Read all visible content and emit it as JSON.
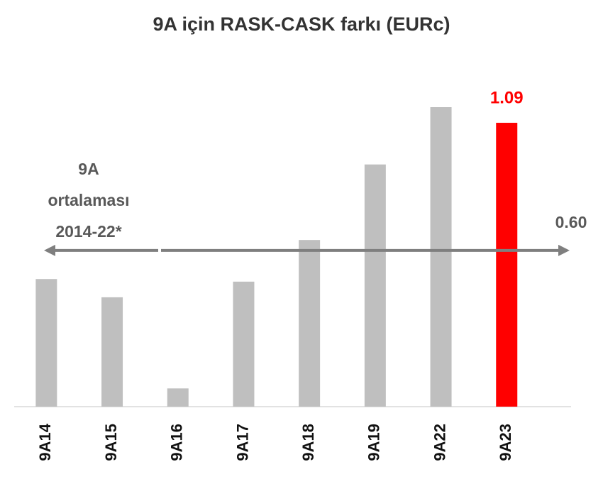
{
  "chart_data": {
    "type": "bar",
    "title": "9A için RASK-CASK farkı (EURc)",
    "categories": [
      "9A14",
      "9A15",
      "9A16",
      "9A17",
      "9A18",
      "9A19",
      "9A22",
      "9A23"
    ],
    "values": [
      0.49,
      0.42,
      0.07,
      0.48,
      0.64,
      0.93,
      1.15,
      1.09
    ],
    "color": "#bfbfbf",
    "highlight": {
      "category": "9A23",
      "color": "#ff0000"
    },
    "reference_line": {
      "label": [
        "9A",
        "ortalaması",
        "2014-22*"
      ],
      "value": {
        "value": 0.6,
        "label": "0.60"
      },
      "color": "#7f7f7f"
    }
  }
}
